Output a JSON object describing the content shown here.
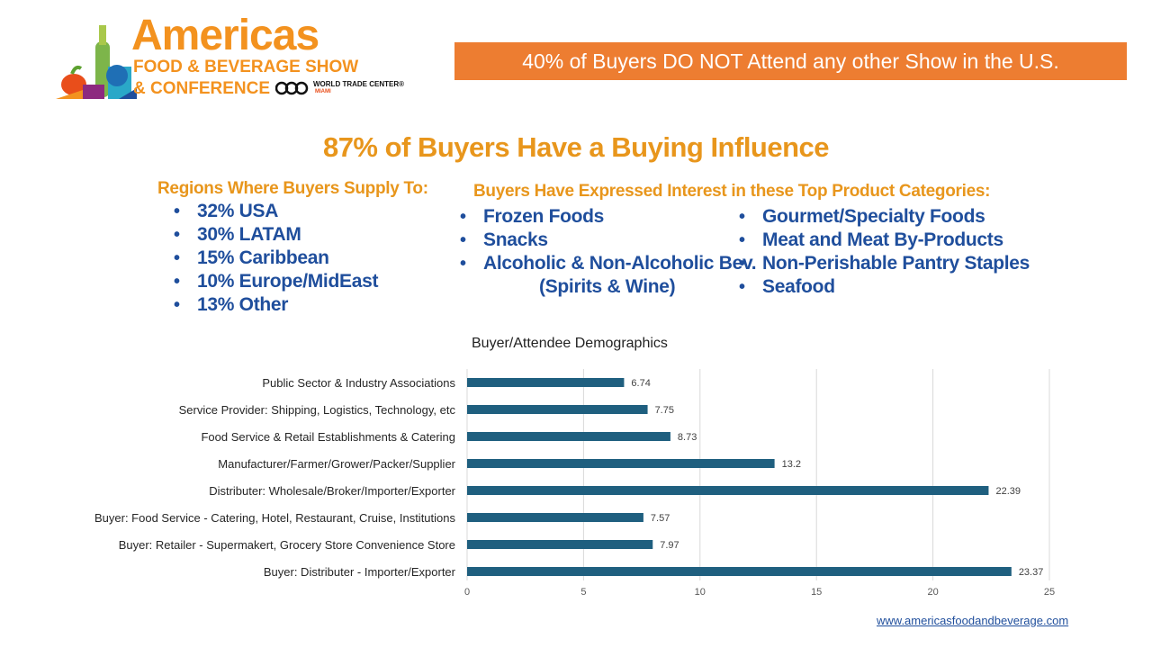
{
  "logo": {
    "title": "Americas",
    "line1": "FOOD & BEVERAGE SHOW",
    "line2": "& CONFERENCE",
    "wtc": "WORLD TRADE CENTER®",
    "wtc_city": "MIAMI"
  },
  "banner": {
    "text": "40% of Buyers DO NOT Attend any other Show in the U.S.",
    "color": "#ED7D31"
  },
  "headline": "87% of Buyers Have a Buying Influence",
  "regions": {
    "heading": "Regions Where Buyers Supply To:",
    "items": [
      "32% USA",
      "30% LATAM",
      "15% Caribbean",
      "10% Europe/MidEast",
      "13% Other"
    ]
  },
  "categories_interest": {
    "heading": "Buyers Have Expressed Interest in these Top Product Categories:",
    "left": [
      "Frozen Foods",
      "Snacks",
      "Alcoholic & Non-Alcoholic Bev."
    ],
    "left_continuation": "(Spirits & Wine)",
    "right": [
      "Gourmet/Specialty Foods",
      "Meat and Meat By-Products",
      "Non-Perishable Pantry Staples",
      "Seafood"
    ]
  },
  "chart_data": {
    "type": "bar",
    "orientation": "horizontal",
    "title": "Buyer/Attendee Demographics",
    "categories": [
      "Public Sector & Industry Associations",
      "Service Provider: Shipping, Logistics, Technology, etc",
      "Food Service & Retail Establishments & Catering",
      "Manufacturer/Farmer/Grower/Packer/Supplier",
      "Distributer: Wholesale/Broker/Importer/Exporter",
      "Buyer: Food Service - Catering, Hotel, Restaurant, Cruise, Institutions",
      "Buyer: Retailer - Supermakert, Grocery Store Convenience Store",
      "Buyer: Distributer - Importer/Exporter"
    ],
    "values": [
      6.74,
      7.75,
      8.73,
      13.2,
      22.39,
      7.57,
      7.97,
      23.37
    ],
    "xlim": [
      0,
      25
    ],
    "xticks": [
      0,
      5,
      10,
      15,
      20,
      25
    ],
    "grid": true,
    "bar_color": "#1F5F7F",
    "data_labels": true
  },
  "footer": {
    "website": "www.americasfoodandbeverage.com"
  }
}
